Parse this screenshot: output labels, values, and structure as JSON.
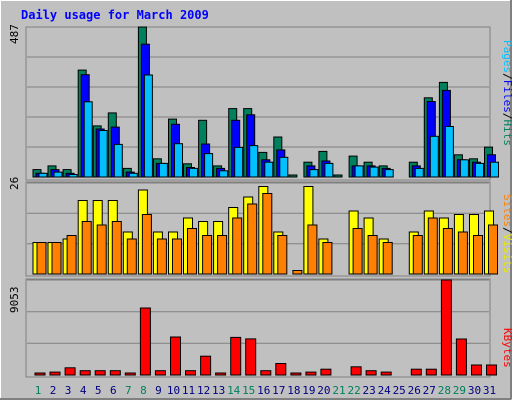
{
  "title": "Daily usage for March 2009",
  "colors": {
    "background": "#C0C0C0",
    "title": "#0000FF",
    "hits": "#00805C",
    "files": "#0000FF",
    "pages": "#00C0FF",
    "visits": "#FFFF00",
    "sites": "#FF8000",
    "kbytes": "#FF0000",
    "day_weekday": "#000080",
    "day_weekend": "#00805C",
    "grid": "#808080"
  },
  "right_labels": {
    "panel1": [
      "Pages",
      "Files",
      "Hits"
    ],
    "panel2": [
      "Sites",
      "Visits"
    ],
    "panel3": [
      "KBytes"
    ]
  },
  "chart_data": [
    {
      "type": "bar",
      "name": "hits-files-pages",
      "ymax_label": "487",
      "ylim": [
        0,
        487
      ],
      "grid": true,
      "categories": [
        "1",
        "2",
        "3",
        "4",
        "5",
        "6",
        "7",
        "8",
        "9",
        "10",
        "11",
        "12",
        "13",
        "14",
        "15",
        "16",
        "17",
        "18",
        "19",
        "20",
        "21",
        "22",
        "23",
        "24",
        "25",
        "26",
        "27",
        "28",
        "29",
        "30",
        "31"
      ],
      "series": [
        {
          "name": "Hits",
          "values": [
            24,
            36,
            24,
            347,
            166,
            208,
            28,
            487,
            59,
            188,
            43,
            184,
            36,
            222,
            222,
            80,
            130,
            4,
            48,
            83,
            4,
            68,
            48,
            36,
            0,
            48,
            257,
            307,
            72,
            59,
            97
          ]
        },
        {
          "name": "Files",
          "values": [
            12,
            24,
            12,
            332,
            156,
            162,
            16,
            431,
            44,
            171,
            31,
            107,
            28,
            184,
            202,
            56,
            88,
            0,
            36,
            52,
            0,
            36,
            36,
            28,
            0,
            36,
            245,
            281,
            56,
            48,
            72
          ]
        },
        {
          "name": "Pages",
          "values": [
            12,
            16,
            8,
            244,
            151,
            106,
            12,
            331,
            44,
            108,
            28,
            76,
            20,
            96,
            102,
            48,
            64,
            0,
            24,
            44,
            0,
            36,
            32,
            24,
            0,
            28,
            132,
            164,
            56,
            44,
            48
          ]
        }
      ]
    },
    {
      "type": "bar",
      "name": "visits-sites",
      "ymax_label": "26",
      "ylim": [
        0,
        26
      ],
      "grid": true,
      "categories": [
        "1",
        "2",
        "3",
        "4",
        "5",
        "6",
        "7",
        "8",
        "9",
        "10",
        "11",
        "12",
        "13",
        "14",
        "15",
        "16",
        "17",
        "18",
        "19",
        "20",
        "21",
        "22",
        "23",
        "24",
        "25",
        "26",
        "27",
        "28",
        "29",
        "30",
        "31"
      ],
      "series": [
        {
          "name": "Visits",
          "values": [
            9,
            9,
            10,
            21,
            21,
            21,
            12,
            24,
            12,
            12,
            16,
            15,
            15,
            19,
            22,
            25,
            12,
            0,
            25,
            10,
            0,
            18,
            16,
            10,
            0,
            12,
            18,
            16,
            17,
            17,
            18
          ],
          "annotation": "day 18 has a tiny non-zero bar"
        },
        {
          "name": "Sites",
          "values": [
            9,
            9,
            11,
            15,
            14,
            15,
            10,
            17,
            10,
            10,
            13,
            11,
            11,
            16,
            20,
            23,
            11,
            1,
            14,
            9,
            0,
            13,
            11,
            9,
            0,
            11,
            16,
            13,
            12,
            11,
            14
          ]
        }
      ]
    },
    {
      "type": "bar",
      "name": "kbytes",
      "ymax_label": "9053",
      "ylim": [
        0,
        9053
      ],
      "grid": true,
      "categories": [
        "1",
        "2",
        "3",
        "4",
        "5",
        "6",
        "7",
        "8",
        "9",
        "10",
        "11",
        "12",
        "13",
        "14",
        "15",
        "16",
        "17",
        "18",
        "19",
        "20",
        "21",
        "22",
        "23",
        "24",
        "25",
        "26",
        "27",
        "28",
        "29",
        "30",
        "31"
      ],
      "series": [
        {
          "name": "KBytes",
          "values": [
            137,
            275,
            688,
            412,
            412,
            412,
            137,
            6380,
            412,
            3620,
            412,
            1790,
            137,
            3580,
            3440,
            412,
            1100,
            137,
            275,
            550,
            0,
            780,
            412,
            275,
            0,
            550,
            550,
            9053,
            3430,
            950,
            950
          ]
        }
      ]
    }
  ],
  "weekend_days": [
    "1",
    "7",
    "8",
    "14",
    "15",
    "21",
    "22",
    "28",
    "29"
  ]
}
